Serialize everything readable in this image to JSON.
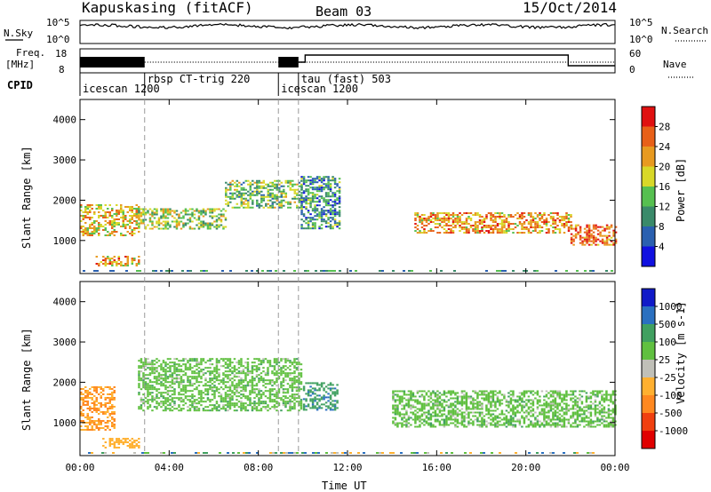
{
  "header": {
    "station": "Kapuskasing (fitACF)",
    "beam": "Beam 03",
    "date": "15/Oct/2014"
  },
  "noise_panel": {
    "left_label": "N.Sky",
    "right_label": "N.Search",
    "left_ticks": [
      "10^5",
      "10^0"
    ],
    "right_ticks": [
      "10^5",
      "10^0"
    ]
  },
  "freq_panel": {
    "left_label_line1": "Freq.",
    "left_label_line2": "[MHz]",
    "right_label": "Nave",
    "left_ticks": [
      "18",
      "8"
    ],
    "right_ticks": [
      "60",
      "0"
    ]
  },
  "cpid": {
    "label": "CPID",
    "segments": [
      {
        "name": "icescan 1200",
        "start": 0.0,
        "end": 2.9
      },
      {
        "name": "rbsp CT-trig 220",
        "start": 2.9,
        "end": 8.9
      },
      {
        "name": "icescan 1200",
        "start": 8.9,
        "end": 9.8
      },
      {
        "name": "tau (fast) 503",
        "start": 9.8,
        "end": 24.0
      }
    ]
  },
  "colors": {
    "power": [
      "#1010e0",
      "#2a60b0",
      "#3a8a6a",
      "#56c050",
      "#d8d828",
      "#e89a20",
      "#e86018",
      "#e01010"
    ],
    "velocity": [
      "#101ac8",
      "#2a70c0",
      "#40a060",
      "#60c040",
      "#c0c0b8",
      "#ffb030",
      "#ff8820",
      "#f04010",
      "#e00000"
    ]
  },
  "chart_data": [
    {
      "type": "heatmap",
      "name": "power",
      "xlabel": "",
      "ylabel": "Slant Range [km]",
      "x_range": [
        0,
        24
      ],
      "ylim": [
        180,
        4500
      ],
      "y_ticks": [
        "1000",
        "2000",
        "3000",
        "4000"
      ],
      "colorbar": {
        "label": "Power [dB]",
        "range": [
          0,
          32
        ],
        "ticks": [
          "4",
          "8",
          "12",
          "16",
          "20",
          "24",
          "28"
        ]
      },
      "echo_bands": [
        {
          "x_start": 0.0,
          "x_end": 2.6,
          "range_start": 1150,
          "range_end": 1900,
          "value": 20
        },
        {
          "x_start": 0.7,
          "x_end": 2.6,
          "range_start": 380,
          "range_end": 620,
          "value": 22
        },
        {
          "x_start": 2.6,
          "x_end": 6.5,
          "range_start": 1300,
          "range_end": 1800,
          "value": 16
        },
        {
          "x_start": 6.5,
          "x_end": 9.9,
          "range_start": 1800,
          "range_end": 2500,
          "value": 14
        },
        {
          "x_start": 9.9,
          "x_end": 11.6,
          "range_start": 1300,
          "range_end": 2600,
          "value": 10
        },
        {
          "x_start": 15.0,
          "x_end": 22.0,
          "range_start": 1200,
          "range_end": 1700,
          "value": 22
        },
        {
          "x_start": 22.0,
          "x_end": 24.0,
          "range_start": 900,
          "range_end": 1400,
          "value": 26
        }
      ]
    },
    {
      "type": "heatmap",
      "name": "velocity",
      "xlabel": "Time UT",
      "ylabel": "Slant Range [km]",
      "x_range": [
        0,
        24
      ],
      "x_ticks": [
        "00:00",
        "04:00",
        "08:00",
        "12:00",
        "16:00",
        "20:00",
        "00:00"
      ],
      "ylim": [
        180,
        4500
      ],
      "y_ticks": [
        "1000",
        "2000",
        "3000",
        "4000"
      ],
      "colorbar": {
        "label": "Velocity [m s-1]",
        "ticks": [
          "1000",
          "500",
          "100",
          "25",
          "-25",
          "-100",
          "-500",
          "-1000"
        ]
      },
      "echo_bands": [
        {
          "x_start": 0.0,
          "x_end": 1.5,
          "range_start": 800,
          "range_end": 1900,
          "value": -300
        },
        {
          "x_start": 1.0,
          "x_end": 2.6,
          "range_start": 380,
          "range_end": 620,
          "value": -200
        },
        {
          "x_start": 2.6,
          "x_end": 9.9,
          "range_start": 1300,
          "range_end": 2600,
          "value": 0
        },
        {
          "x_start": 10.0,
          "x_end": 11.5,
          "range_start": 1300,
          "range_end": 2000,
          "value": 80
        },
        {
          "x_start": 14.0,
          "x_end": 24.0,
          "range_start": 900,
          "range_end": 1800,
          "value": 0
        }
      ]
    }
  ]
}
